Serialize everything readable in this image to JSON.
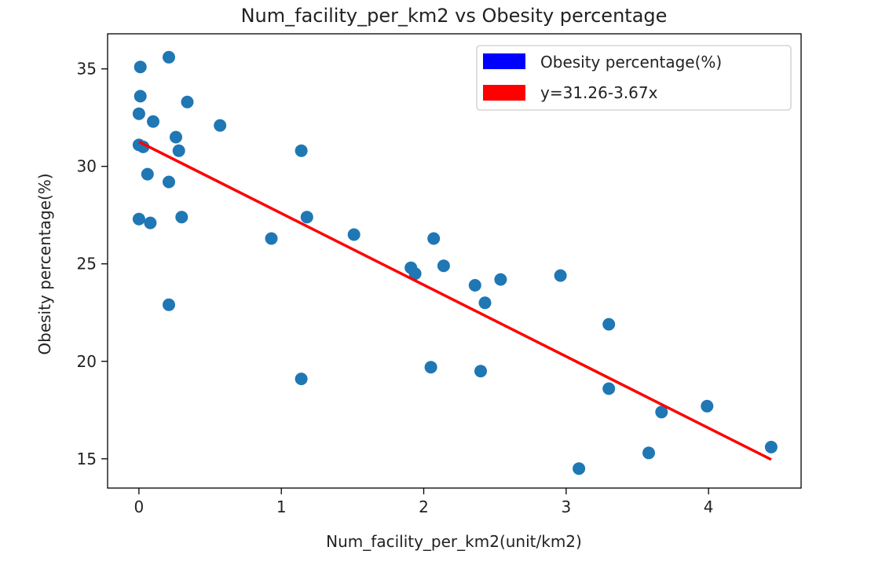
{
  "chart_data": {
    "type": "scatter",
    "title": "Num_facility_per_km2 vs Obesity percentage",
    "xlabel": "Num_facility_per_km2(unit/km2)",
    "ylabel": "Obesity percentage(%)",
    "xlim": [
      -0.22,
      4.65
    ],
    "ylim": [
      13.5,
      36.8
    ],
    "xticks": [
      0,
      1,
      2,
      3,
      4
    ],
    "yticks": [
      15,
      20,
      25,
      30,
      35
    ],
    "grid": false,
    "legend_position": "top-right",
    "series": [
      {
        "name": "Obesity percentage(%)",
        "kind": "scatter",
        "color": "#1f77b4",
        "legend_color": "#0000ff",
        "points": [
          [
            0.01,
            35.1
          ],
          [
            0.21,
            35.6
          ],
          [
            0.01,
            33.6
          ],
          [
            0.34,
            33.3
          ],
          [
            0.0,
            32.7
          ],
          [
            0.1,
            32.3
          ],
          [
            0.57,
            32.1
          ],
          [
            0.26,
            31.5
          ],
          [
            0.0,
            31.1
          ],
          [
            0.03,
            31.0
          ],
          [
            0.28,
            30.8
          ],
          [
            1.14,
            30.8
          ],
          [
            0.06,
            29.6
          ],
          [
            0.21,
            29.2
          ],
          [
            0.0,
            27.3
          ],
          [
            0.08,
            27.1
          ],
          [
            0.3,
            27.4
          ],
          [
            1.18,
            27.4
          ],
          [
            0.93,
            26.3
          ],
          [
            1.51,
            26.5
          ],
          [
            2.07,
            26.3
          ],
          [
            1.91,
            24.8
          ],
          [
            1.94,
            24.5
          ],
          [
            2.14,
            24.9
          ],
          [
            2.36,
            23.9
          ],
          [
            2.54,
            24.2
          ],
          [
            2.96,
            24.4
          ],
          [
            2.43,
            23.0
          ],
          [
            0.21,
            22.9
          ],
          [
            3.3,
            21.9
          ],
          [
            2.05,
            19.7
          ],
          [
            2.4,
            19.5
          ],
          [
            1.14,
            19.1
          ],
          [
            3.3,
            18.6
          ],
          [
            3.67,
            17.4
          ],
          [
            3.99,
            17.7
          ],
          [
            3.58,
            15.3
          ],
          [
            4.44,
            15.6
          ],
          [
            3.09,
            14.5
          ]
        ]
      },
      {
        "name": "y=31.26-3.67x",
        "kind": "line",
        "color": "#ff0000",
        "intercept": 31.26,
        "slope": -3.67,
        "x_range": [
          0,
          4.44
        ]
      }
    ]
  }
}
